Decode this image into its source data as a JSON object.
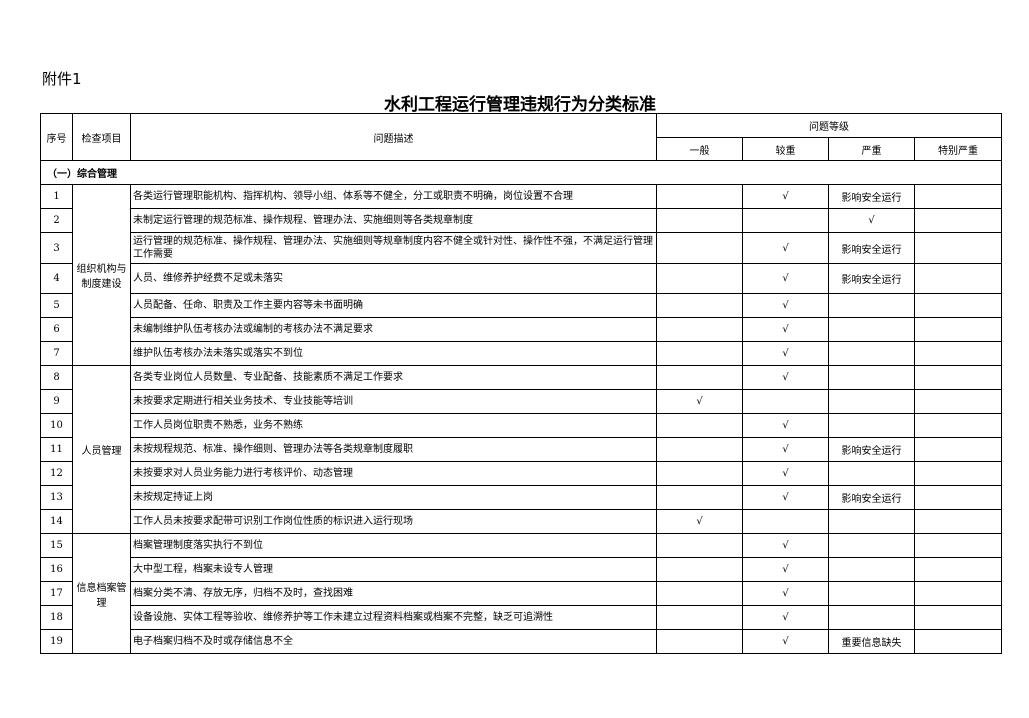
{
  "attachment": "附件1",
  "title": "水利工程运行管理违规行为分类标准",
  "headers": {
    "no": "序号",
    "item": "检查项目",
    "desc": "问题描述",
    "level": "问题等级",
    "general": "一般",
    "moderate": "较重",
    "serious": "严重",
    "very_serious": "特别严重"
  },
  "section": "（一）综合管理",
  "groups": [
    {
      "name": "组织机构与制度建设",
      "rows": [
        {
          "no": "1",
          "desc": "各类运行管理职能机构、指挥机构、领导小组、体系等不健全，分工或职责不明确，岗位设置不合理",
          "general": "",
          "moderate": "√",
          "serious": "影响安全运行",
          "very": ""
        },
        {
          "no": "2",
          "desc": "未制定运行管理的规范标准、操作规程、管理办法、实施细则等各类规章制度",
          "general": "",
          "moderate": "",
          "serious": "√",
          "very": ""
        },
        {
          "no": "3",
          "desc": "运行管理的规范标准、操作规程、管理办法、实施细则等规章制度内容不健全或针对性、操作性不强，不满足运行管理工作需要",
          "general": "",
          "moderate": "√",
          "serious": "影响安全运行",
          "very": ""
        },
        {
          "no": "4",
          "desc": "人员、维修养护经费不足或未落实",
          "general": "",
          "moderate": "√",
          "serious": "影响安全运行",
          "very": ""
        },
        {
          "no": "5",
          "desc": "人员配备、任命、职责及工作主要内容等未书面明确",
          "general": "",
          "moderate": "√",
          "serious": "",
          "very": ""
        },
        {
          "no": "6",
          "desc": "未编制维护队伍考核办法或编制的考核办法不满足要求",
          "general": "",
          "moderate": "√",
          "serious": "",
          "very": ""
        },
        {
          "no": "7",
          "desc": "维护队伍考核办法未落实或落实不到位",
          "general": "",
          "moderate": "√",
          "serious": "",
          "very": ""
        }
      ]
    },
    {
      "name": "人员管理",
      "rows": [
        {
          "no": "8",
          "desc": "各类专业岗位人员数量、专业配备、技能素质不满足工作要求",
          "general": "",
          "moderate": "√",
          "serious": "",
          "very": ""
        },
        {
          "no": "9",
          "desc": "未按要求定期进行相关业务技术、专业技能等培训",
          "general": "√",
          "moderate": "",
          "serious": "",
          "very": ""
        },
        {
          "no": "10",
          "desc": "工作人员岗位职责不熟悉，业务不熟练",
          "general": "",
          "moderate": "√",
          "serious": "",
          "very": ""
        },
        {
          "no": "11",
          "desc": "未按规程规范、标准、操作细则、管理办法等各类规章制度履职",
          "general": "",
          "moderate": "√",
          "serious": "影响安全运行",
          "very": ""
        },
        {
          "no": "12",
          "desc": "未按要求对人员业务能力进行考核评价、动态管理",
          "general": "",
          "moderate": "√",
          "serious": "",
          "very": ""
        },
        {
          "no": "13",
          "desc": "未按规定持证上岗",
          "general": "",
          "moderate": "√",
          "serious": "影响安全运行",
          "very": ""
        },
        {
          "no": "14",
          "desc": "工作人员未按要求配带可识别工作岗位性质的标识进入运行现场",
          "general": "√",
          "moderate": "",
          "serious": "",
          "very": ""
        }
      ]
    },
    {
      "name": "信息档案管理",
      "rows": [
        {
          "no": "15",
          "desc": "档案管理制度落实执行不到位",
          "general": "",
          "moderate": "√",
          "serious": "",
          "very": ""
        },
        {
          "no": "16",
          "desc": "大中型工程，档案未设专人管理",
          "general": "",
          "moderate": "√",
          "serious": "",
          "very": ""
        },
        {
          "no": "17",
          "desc": "档案分类不清、存放无序，归档不及时，查找困难",
          "general": "",
          "moderate": "√",
          "serious": "",
          "very": ""
        },
        {
          "no": "18",
          "desc": "设备设施、实体工程等验收、维修养护等工作未建立过程资料档案或档案不完整，缺乏可追溯性",
          "general": "",
          "moderate": "√",
          "serious": "",
          "very": ""
        },
        {
          "no": "19",
          "desc": "电子档案归档不及时或存储信息不全",
          "general": "",
          "moderate": "√",
          "serious": "重要信息缺失",
          "very": ""
        }
      ]
    }
  ]
}
